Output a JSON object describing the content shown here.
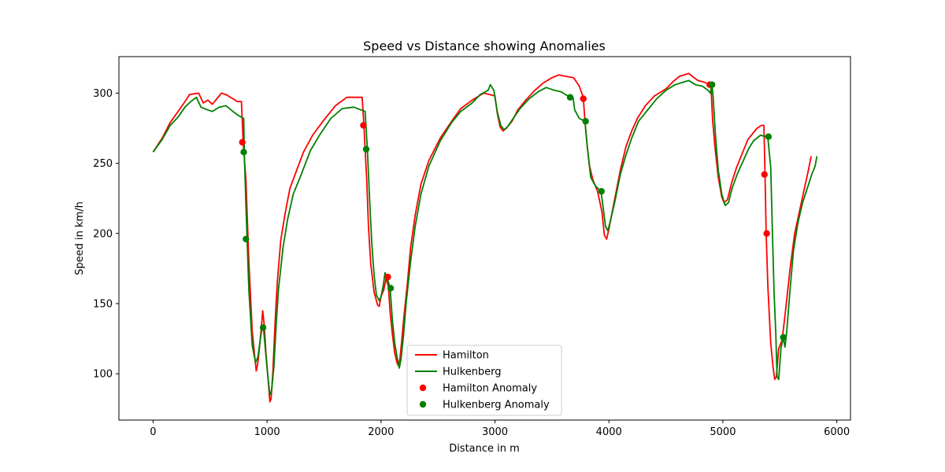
{
  "chart_data": {
    "type": "line",
    "title": "Speed vs Distance showing Anomalies",
    "xlabel": "Distance in m",
    "ylabel": "Speed in km/h",
    "xlim": [
      -300,
      6120
    ],
    "ylim": [
      67,
      326
    ],
    "xticks": [
      0,
      1000,
      2000,
      3000,
      4000,
      5000,
      6000
    ],
    "yticks": [
      100,
      150,
      200,
      250,
      300
    ],
    "grid": false,
    "legend_position": "lower-center",
    "series": [
      {
        "name": "Hamilton",
        "kind": "line",
        "color": "#ff0000",
        "points": [
          [
            0,
            258
          ],
          [
            80,
            268
          ],
          [
            150,
            279
          ],
          [
            220,
            287
          ],
          [
            280,
            294
          ],
          [
            320,
            299
          ],
          [
            400,
            300
          ],
          [
            440,
            293
          ],
          [
            480,
            295
          ],
          [
            520,
            292
          ],
          [
            560,
            296
          ],
          [
            600,
            300
          ],
          [
            640,
            299
          ],
          [
            700,
            296
          ],
          [
            740,
            294
          ],
          [
            775,
            294
          ],
          [
            790,
            266
          ],
          [
            815,
            238
          ],
          [
            840,
            180
          ],
          [
            870,
            130
          ],
          [
            895,
            110
          ],
          [
            905,
            102
          ],
          [
            920,
            108
          ],
          [
            935,
            120
          ],
          [
            950,
            133
          ],
          [
            962,
            145
          ],
          [
            975,
            135
          ],
          [
            990,
            115
          ],
          [
            1010,
            95
          ],
          [
            1025,
            80
          ],
          [
            1035,
            82
          ],
          [
            1050,
            100
          ],
          [
            1070,
            135
          ],
          [
            1090,
            165
          ],
          [
            1120,
            195
          ],
          [
            1160,
            215
          ],
          [
            1200,
            232
          ],
          [
            1260,
            245
          ],
          [
            1320,
            258
          ],
          [
            1400,
            270
          ],
          [
            1500,
            281
          ],
          [
            1600,
            291
          ],
          [
            1700,
            297
          ],
          [
            1800,
            297
          ],
          [
            1835,
            297
          ],
          [
            1850,
            277
          ],
          [
            1875,
            238
          ],
          [
            1890,
            205
          ],
          [
            1910,
            178
          ],
          [
            1940,
            158
          ],
          [
            1970,
            149
          ],
          [
            1985,
            148
          ],
          [
            2000,
            155
          ],
          [
            2025,
            160
          ],
          [
            2045,
            168
          ],
          [
            2065,
            162
          ],
          [
            2080,
            144
          ],
          [
            2100,
            128
          ],
          [
            2120,
            115
          ],
          [
            2140,
            108
          ],
          [
            2150,
            106
          ],
          [
            2165,
            110
          ],
          [
            2180,
            122
          ],
          [
            2200,
            140
          ],
          [
            2230,
            163
          ],
          [
            2260,
            190
          ],
          [
            2300,
            213
          ],
          [
            2350,
            235
          ],
          [
            2420,
            252
          ],
          [
            2520,
            268
          ],
          [
            2620,
            280
          ],
          [
            2700,
            289
          ],
          [
            2800,
            295
          ],
          [
            2900,
            300
          ],
          [
            3000,
            298
          ],
          [
            3020,
            286
          ],
          [
            3045,
            276
          ],
          [
            3070,
            273
          ],
          [
            3100,
            275
          ],
          [
            3150,
            280
          ],
          [
            3200,
            288
          ],
          [
            3270,
            295
          ],
          [
            3350,
            302
          ],
          [
            3420,
            307
          ],
          [
            3500,
            311
          ],
          [
            3560,
            313
          ],
          [
            3620,
            312
          ],
          [
            3690,
            311
          ],
          [
            3740,
            305
          ],
          [
            3775,
            297
          ],
          [
            3790,
            280
          ],
          [
            3810,
            262
          ],
          [
            3830,
            248
          ],
          [
            3860,
            238
          ],
          [
            3900,
            230
          ],
          [
            3940,
            215
          ],
          [
            3960,
            199
          ],
          [
            3980,
            196
          ],
          [
            4000,
            203
          ],
          [
            4040,
            220
          ],
          [
            4100,
            245
          ],
          [
            4150,
            262
          ],
          [
            4200,
            273
          ],
          [
            4250,
            282
          ],
          [
            4320,
            291
          ],
          [
            4400,
            298
          ],
          [
            4500,
            303
          ],
          [
            4560,
            308
          ],
          [
            4620,
            312
          ],
          [
            4700,
            314
          ],
          [
            4780,
            309
          ],
          [
            4830,
            308
          ],
          [
            4860,
            307
          ],
          [
            4885,
            306
          ],
          [
            4895,
            306
          ],
          [
            4910,
            281
          ],
          [
            4930,
            262
          ],
          [
            4960,
            240
          ],
          [
            4990,
            226
          ],
          [
            5010,
            222
          ],
          [
            5040,
            224
          ],
          [
            5080,
            237
          ],
          [
            5120,
            247
          ],
          [
            5170,
            257
          ],
          [
            5220,
            267
          ],
          [
            5260,
            271
          ],
          [
            5300,
            275
          ],
          [
            5340,
            277
          ],
          [
            5360,
            277
          ],
          [
            5370,
            242
          ],
          [
            5380,
            200
          ],
          [
            5395,
            162
          ],
          [
            5420,
            122
          ],
          [
            5440,
            105
          ],
          [
            5455,
            96
          ],
          [
            5470,
            98
          ],
          [
            5490,
            118
          ],
          [
            5520,
            124
          ],
          [
            5550,
            145
          ],
          [
            5590,
            175
          ],
          [
            5630,
            200
          ],
          [
            5670,
            215
          ],
          [
            5710,
            230
          ],
          [
            5750,
            245
          ],
          [
            5775,
            255
          ]
        ]
      },
      {
        "name": "Hulkenberg",
        "kind": "line",
        "color": "#008000",
        "points": [
          [
            0,
            258
          ],
          [
            80,
            267
          ],
          [
            150,
            277
          ],
          [
            220,
            283
          ],
          [
            280,
            290
          ],
          [
            330,
            294
          ],
          [
            380,
            297
          ],
          [
            420,
            290
          ],
          [
            480,
            288
          ],
          [
            520,
            287
          ],
          [
            580,
            290
          ],
          [
            640,
            291
          ],
          [
            700,
            287
          ],
          [
            750,
            284
          ],
          [
            795,
            282
          ],
          [
            800,
            258
          ],
          [
            815,
            220
          ],
          [
            840,
            160
          ],
          [
            870,
            120
          ],
          [
            900,
            108
          ],
          [
            920,
            112
          ],
          [
            940,
            124
          ],
          [
            955,
            132
          ],
          [
            968,
            133
          ],
          [
            985,
            118
          ],
          [
            1005,
            100
          ],
          [
            1025,
            85
          ],
          [
            1040,
            88
          ],
          [
            1060,
            105
          ],
          [
            1080,
            135
          ],
          [
            1100,
            160
          ],
          [
            1140,
            190
          ],
          [
            1180,
            210
          ],
          [
            1230,
            228
          ],
          [
            1300,
            242
          ],
          [
            1380,
            259
          ],
          [
            1460,
            270
          ],
          [
            1560,
            282
          ],
          [
            1660,
            289
          ],
          [
            1760,
            290
          ],
          [
            1860,
            287
          ],
          [
            1880,
            260
          ],
          [
            1900,
            225
          ],
          [
            1920,
            192
          ],
          [
            1940,
            170
          ],
          [
            1960,
            156
          ],
          [
            1985,
            152
          ],
          [
            2000,
            155
          ],
          [
            2020,
            163
          ],
          [
            2035,
            172
          ],
          [
            2055,
            168
          ],
          [
            2080,
            161
          ],
          [
            2100,
            138
          ],
          [
            2120,
            122
          ],
          [
            2140,
            112
          ],
          [
            2160,
            104
          ],
          [
            2175,
            110
          ],
          [
            2195,
            125
          ],
          [
            2220,
            150
          ],
          [
            2260,
            180
          ],
          [
            2300,
            205
          ],
          [
            2350,
            228
          ],
          [
            2420,
            248
          ],
          [
            2520,
            266
          ],
          [
            2620,
            279
          ],
          [
            2700,
            287
          ],
          [
            2800,
            293
          ],
          [
            2870,
            299
          ],
          [
            2940,
            302
          ],
          [
            2960,
            306
          ],
          [
            2990,
            302
          ],
          [
            3020,
            287
          ],
          [
            3050,
            277
          ],
          [
            3080,
            274
          ],
          [
            3110,
            276
          ],
          [
            3160,
            282
          ],
          [
            3220,
            289
          ],
          [
            3300,
            296
          ],
          [
            3380,
            301
          ],
          [
            3450,
            304
          ],
          [
            3520,
            302
          ],
          [
            3580,
            301
          ],
          [
            3620,
            299
          ],
          [
            3660,
            297
          ],
          [
            3685,
            297
          ],
          [
            3700,
            288
          ],
          [
            3740,
            282
          ],
          [
            3790,
            280
          ],
          [
            3810,
            262
          ],
          [
            3840,
            240
          ],
          [
            3880,
            234
          ],
          [
            3930,
            230
          ],
          [
            3950,
            218
          ],
          [
            3970,
            205
          ],
          [
            3990,
            202
          ],
          [
            4010,
            208
          ],
          [
            4050,
            222
          ],
          [
            4100,
            242
          ],
          [
            4150,
            256
          ],
          [
            4200,
            268
          ],
          [
            4260,
            280
          ],
          [
            4340,
            288
          ],
          [
            4420,
            296
          ],
          [
            4500,
            302
          ],
          [
            4580,
            306
          ],
          [
            4660,
            308
          ],
          [
            4700,
            309
          ],
          [
            4760,
            306
          ],
          [
            4820,
            305
          ],
          [
            4870,
            302
          ],
          [
            4890,
            300
          ],
          [
            4905,
            306
          ],
          [
            4915,
            297
          ],
          [
            4935,
            270
          ],
          [
            4960,
            245
          ],
          [
            4990,
            228
          ],
          [
            5020,
            220
          ],
          [
            5050,
            222
          ],
          [
            5080,
            232
          ],
          [
            5130,
            243
          ],
          [
            5180,
            252
          ],
          [
            5230,
            261
          ],
          [
            5270,
            266
          ],
          [
            5300,
            268
          ],
          [
            5330,
            270
          ],
          [
            5380,
            269
          ],
          [
            5395,
            268
          ],
          [
            5420,
            247
          ],
          [
            5435,
            200
          ],
          [
            5450,
            157
          ],
          [
            5465,
            128
          ],
          [
            5475,
            98
          ],
          [
            5490,
            96
          ],
          [
            5510,
            118
          ],
          [
            5530,
            126
          ],
          [
            5545,
            119
          ],
          [
            5560,
            130
          ],
          [
            5590,
            160
          ],
          [
            5620,
            188
          ],
          [
            5660,
            208
          ],
          [
            5700,
            222
          ],
          [
            5740,
            232
          ],
          [
            5780,
            242
          ],
          [
            5810,
            248
          ],
          [
            5825,
            255
          ]
        ]
      },
      {
        "name": "Hamilton Anomaly",
        "kind": "scatter",
        "color": "#ff0000",
        "points": [
          [
            783,
            265
          ],
          [
            1845,
            277
          ],
          [
            2060,
            169
          ],
          [
            3775,
            296
          ],
          [
            4885,
            306
          ],
          [
            5365,
            242
          ],
          [
            5385,
            200
          ]
        ]
      },
      {
        "name": "Hulkenberg Anomaly",
        "kind": "scatter",
        "color": "#008000",
        "points": [
          [
            795,
            258
          ],
          [
            815,
            196
          ],
          [
            965,
            133
          ],
          [
            1870,
            260
          ],
          [
            2085,
            161
          ],
          [
            3660,
            297
          ],
          [
            3795,
            280
          ],
          [
            3935,
            230
          ],
          [
            4905,
            306
          ],
          [
            5400,
            269
          ],
          [
            5530,
            126
          ]
        ]
      }
    ]
  }
}
